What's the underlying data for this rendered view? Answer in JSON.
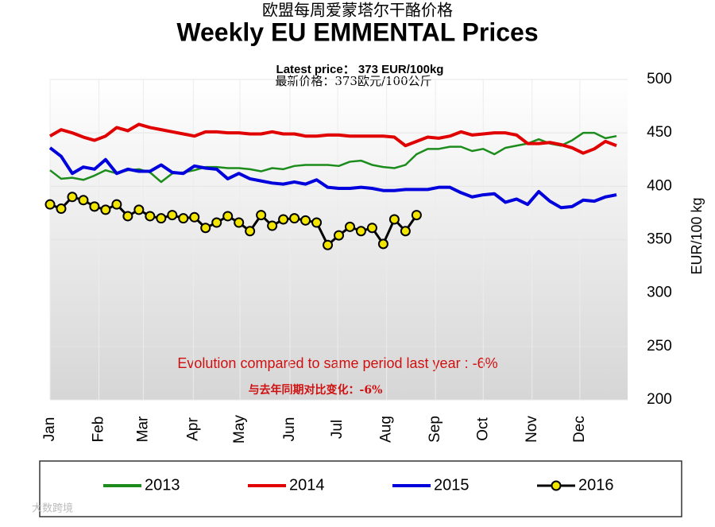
{
  "chart_data": {
    "type": "line",
    "title_cn": "欧盟每周爱蒙塔尔干酪价格",
    "title": "Weekly EU EMMENTAL Prices",
    "subtitle": "Latest price： 373 EUR/100kg",
    "subtitle_cn": "最新价格：373欧元/100公斤",
    "y_label": "EUR/100 kg",
    "annotation": "Evolution compared to same period last year : -6%",
    "annotation_cn": "与去年同期对比变化：-6%",
    "watermark": "大数跨境",
    "x": [
      0,
      1,
      2,
      3,
      4,
      5,
      6,
      7,
      8,
      9,
      10,
      11,
      12,
      13,
      14,
      15,
      16,
      17,
      18,
      19,
      20,
      21,
      22,
      23,
      24,
      25,
      26,
      27,
      28,
      29,
      30,
      31,
      32,
      33,
      34,
      35,
      36,
      37,
      38,
      39,
      40,
      41,
      42,
      43,
      44,
      45,
      46,
      47,
      48,
      49,
      50,
      51
    ],
    "xlim": [
      0,
      52
    ],
    "xticks": [
      {
        "value": 0,
        "label": "Jan"
      },
      {
        "value": 4.4,
        "label": "Feb"
      },
      {
        "value": 8.4,
        "label": "Mar"
      },
      {
        "value": 12.9,
        "label": "Apr"
      },
      {
        "value": 17.1,
        "label": "May"
      },
      {
        "value": 21.6,
        "label": "Jun"
      },
      {
        "value": 25.9,
        "label": "Jul"
      },
      {
        "value": 30.3,
        "label": "Aug"
      },
      {
        "value": 34.7,
        "label": "Sep"
      },
      {
        "value": 39,
        "label": "Oct"
      },
      {
        "value": 43.4,
        "label": "Nov"
      },
      {
        "value": 47.7,
        "label": "Dec"
      }
    ],
    "ylim": [
      200,
      500
    ],
    "yticks": [
      200,
      250,
      300,
      350,
      400,
      450,
      500
    ],
    "grid": true,
    "series": [
      {
        "name": "2013",
        "color": "#1c8c1c",
        "values": [
          415,
          407,
          408,
          406,
          410,
          415,
          412,
          415,
          416,
          413,
          404,
          412,
          413,
          415,
          418,
          418,
          417,
          417,
          416,
          414,
          417,
          416,
          419,
          420,
          420,
          420,
          419,
          423,
          424,
          420,
          418,
          417,
          420,
          430,
          435,
          435,
          437,
          437,
          433,
          435,
          430,
          436,
          438,
          440,
          444,
          440,
          438,
          443,
          450,
          450,
          445,
          447
        ]
      },
      {
        "name": "2014",
        "color": "#e00000",
        "values": [
          447,
          453,
          450,
          446,
          443,
          447,
          455,
          452,
          458,
          455,
          453,
          451,
          449,
          447,
          451,
          451,
          450,
          450,
          449,
          449,
          451,
          449,
          449,
          447,
          447,
          448,
          448,
          447,
          447,
          447,
          447,
          446,
          438,
          442,
          446,
          445,
          447,
          451,
          448,
          449,
          450,
          450,
          448,
          440,
          440,
          441,
          439,
          436,
          431,
          435,
          442,
          438
        ]
      },
      {
        "name": "2015",
        "color": "#0000dd",
        "values": [
          436,
          428,
          412,
          418,
          416,
          425,
          412,
          416,
          414,
          414,
          420,
          413,
          412,
          419,
          417,
          416,
          407,
          412,
          407,
          405,
          403,
          402,
          404,
          402,
          406,
          399,
          398,
          398,
          399,
          398,
          396,
          396,
          397,
          397,
          397,
          399,
          399,
          394,
          390,
          392,
          393,
          385,
          388,
          383,
          395,
          386,
          380,
          381,
          387,
          386,
          390,
          392
        ]
      },
      {
        "name": "2016",
        "color": "#000000",
        "marker_color": "#f2e600",
        "values": [
          383,
          379,
          390,
          387,
          381,
          378,
          383,
          372,
          378,
          372,
          370,
          373,
          370,
          371,
          361,
          366,
          372,
          366,
          358,
          373,
          363,
          369,
          370,
          368,
          366,
          345,
          354,
          362,
          358,
          361,
          346,
          369,
          358,
          373,
          null,
          null,
          null,
          null,
          null,
          null,
          null,
          null,
          null,
          null,
          null,
          null,
          null,
          null,
          null,
          null,
          null,
          null
        ]
      }
    ]
  }
}
